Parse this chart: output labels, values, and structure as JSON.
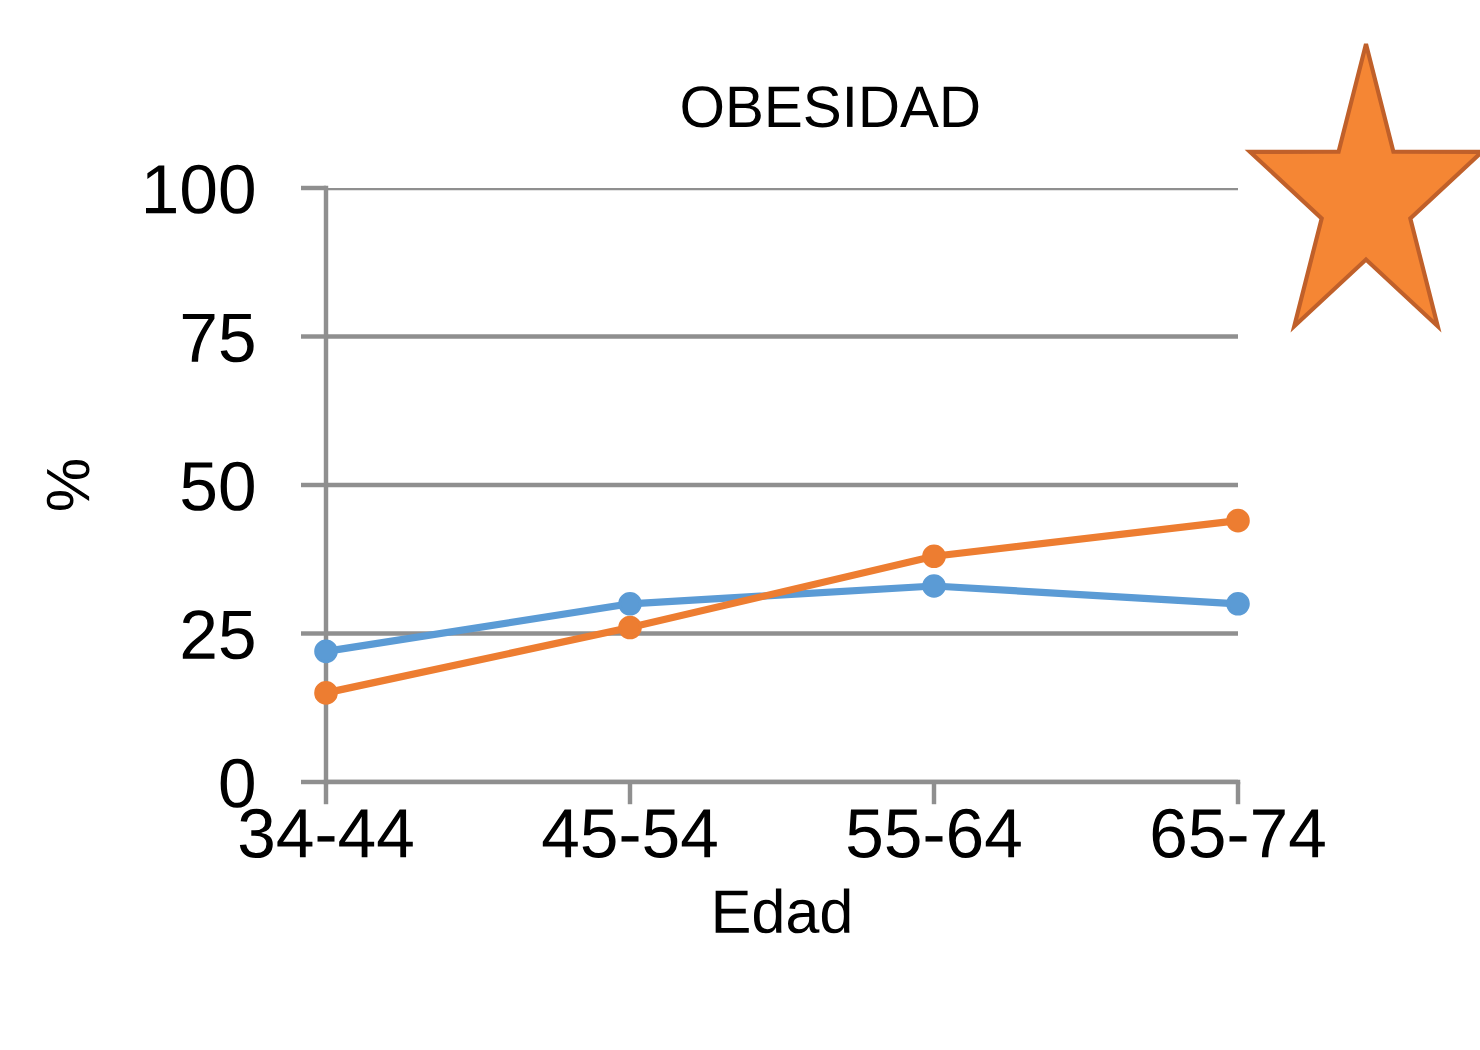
{
  "chart_data": {
    "type": "line",
    "title": "OBESIDAD",
    "xlabel": "Edad",
    "ylabel": "%",
    "categories": [
      "34-44",
      "45-54",
      "55-64",
      "65-74"
    ],
    "series": [
      {
        "color": "#5b9bd5",
        "values": [
          22,
          30,
          33,
          30
        ]
      },
      {
        "color": "#ed7d31",
        "values": [
          15,
          26,
          38,
          44
        ]
      }
    ],
    "ylim": [
      0,
      100
    ],
    "yticks": [
      0,
      25,
      50,
      75,
      100
    ],
    "grid": "y",
    "marker": "circle",
    "line_style": "solid"
  }
}
